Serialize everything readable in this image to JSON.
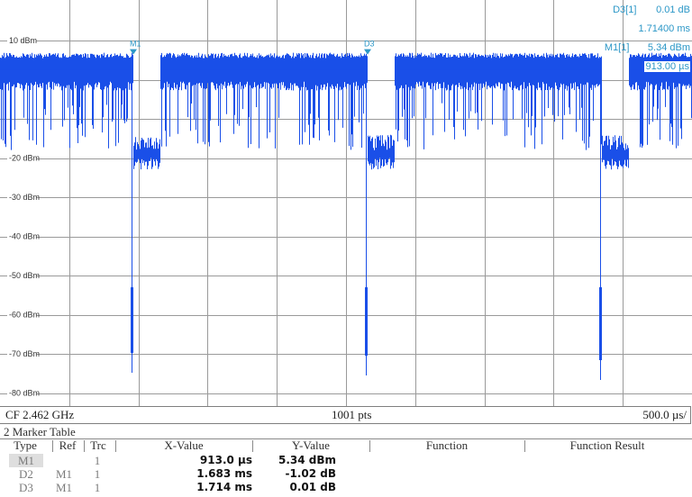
{
  "reference_label": "10 dBm",
  "y_axis_labels": [
    "-20 dBm",
    "-30 dBm",
    "-40 dBm",
    "-50 dBm",
    "-60 dBm",
    "-70 dBm",
    "-80 dBm"
  ],
  "y_axis_values": [
    10,
    -20,
    -30,
    -40,
    -50,
    -60,
    -70,
    -80
  ],
  "trace_color": "#1a4fe8",
  "marker_color": "#2b97c7",
  "marker_flags": {
    "m1": "M1",
    "d3": "D3"
  },
  "marker_readout": {
    "d3_name": "D3[1]",
    "d3_value": "0.01 dB",
    "d3_time": "1.71400 ms",
    "m1_name": "M1[1]",
    "m1_value": "5.34 dBm",
    "m1_time": "913.00 µs"
  },
  "status_bar": {
    "center_frequency": "CF 2.462 GHz",
    "points": "1001 pts",
    "span_per_div": "500.0 µs/"
  },
  "marker_table": {
    "title": "2 Marker Table",
    "headers": {
      "type": "Type",
      "ref": "Ref",
      "trc": "Trc",
      "x_value": "X-Value",
      "y_value": "Y-Value",
      "function": "Function",
      "function_result": "Function Result"
    },
    "rows": [
      {
        "type": "M1",
        "ref": "",
        "trc": "1",
        "x_value": "913.0 µs",
        "y_value": "5.34 dBm"
      },
      {
        "type": "D2",
        "ref": "M1",
        "trc": "1",
        "x_value": "1.683 ms",
        "y_value": "-1.02 dB"
      },
      {
        "type": "D3",
        "ref": "M1",
        "trc": "1",
        "x_value": "1.714 ms",
        "y_value": "0.01 dB"
      }
    ]
  }
}
